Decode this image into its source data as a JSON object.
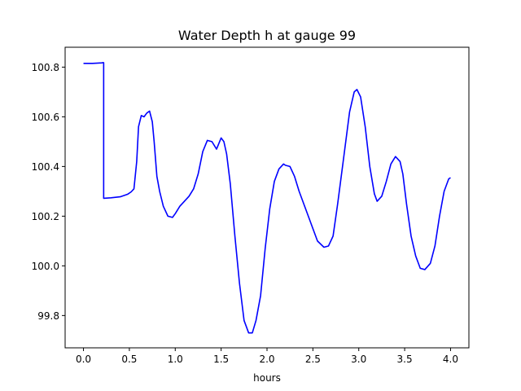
{
  "chart_data": {
    "type": "line",
    "title": "Water Depth h at gauge 99",
    "xlabel": "hours",
    "ylabel": "",
    "xlim": [
      -0.2,
      4.2
    ],
    "ylim": [
      99.67,
      100.88
    ],
    "xticks": [
      0.0,
      0.5,
      1.0,
      1.5,
      2.0,
      2.5,
      3.0,
      3.5,
      4.0
    ],
    "xtick_labels": [
      "0.0",
      "0.5",
      "1.0",
      "1.5",
      "2.0",
      "2.5",
      "3.0",
      "3.5",
      "4.0"
    ],
    "yticks": [
      99.8,
      100.0,
      100.2,
      100.4,
      100.6,
      100.8
    ],
    "ytick_labels": [
      "99.8",
      "100.0",
      "100.2",
      "100.4",
      "100.6",
      "100.8"
    ],
    "grid": false,
    "series": [
      {
        "color": "#0000ff",
        "x": [
          0.0,
          0.1,
          0.2,
          0.21,
          0.22,
          0.22,
          0.3,
          0.4,
          0.48,
          0.52,
          0.55,
          0.58,
          0.6,
          0.63,
          0.66,
          0.69,
          0.72,
          0.75,
          0.77,
          0.8,
          0.83,
          0.87,
          0.92,
          0.97,
          1.0,
          1.05,
          1.1,
          1.15,
          1.2,
          1.25,
          1.3,
          1.35,
          1.4,
          1.45,
          1.5,
          1.53,
          1.56,
          1.6,
          1.65,
          1.7,
          1.75,
          1.8,
          1.84,
          1.88,
          1.93,
          1.98,
          2.03,
          2.08,
          2.13,
          2.18,
          2.2,
          2.25,
          2.3,
          2.35,
          2.45,
          2.55,
          2.62,
          2.67,
          2.72,
          2.77,
          2.83,
          2.9,
          2.95,
          2.98,
          3.02,
          3.07,
          3.12,
          3.17,
          3.2,
          3.25,
          3.3,
          3.35,
          3.4,
          3.45,
          3.48,
          3.52,
          3.57,
          3.62,
          3.67,
          3.72,
          3.78,
          3.83,
          3.88,
          3.93,
          3.98,
          4.0
        ],
        "values": [
          100.815,
          100.815,
          100.817,
          100.818,
          100.818,
          100.272,
          100.274,
          100.278,
          100.288,
          100.298,
          100.31,
          100.42,
          100.56,
          100.605,
          100.6,
          100.615,
          100.623,
          100.58,
          100.5,
          100.36,
          100.3,
          100.24,
          100.2,
          100.195,
          100.21,
          100.24,
          100.26,
          100.28,
          100.31,
          100.37,
          100.46,
          100.505,
          100.5,
          100.47,
          100.515,
          100.5,
          100.45,
          100.33,
          100.12,
          99.93,
          99.78,
          99.73,
          99.73,
          99.78,
          99.88,
          100.07,
          100.23,
          100.34,
          100.39,
          100.41,
          100.405,
          100.4,
          100.36,
          100.3,
          100.2,
          100.1,
          100.075,
          100.08,
          100.12,
          100.25,
          100.42,
          100.62,
          100.7,
          100.71,
          100.68,
          100.56,
          100.4,
          100.29,
          100.26,
          100.28,
          100.34,
          100.41,
          100.44,
          100.42,
          100.37,
          100.25,
          100.12,
          100.04,
          99.99,
          99.985,
          100.01,
          100.08,
          100.2,
          100.3,
          100.35,
          100.355
        ]
      }
    ]
  }
}
